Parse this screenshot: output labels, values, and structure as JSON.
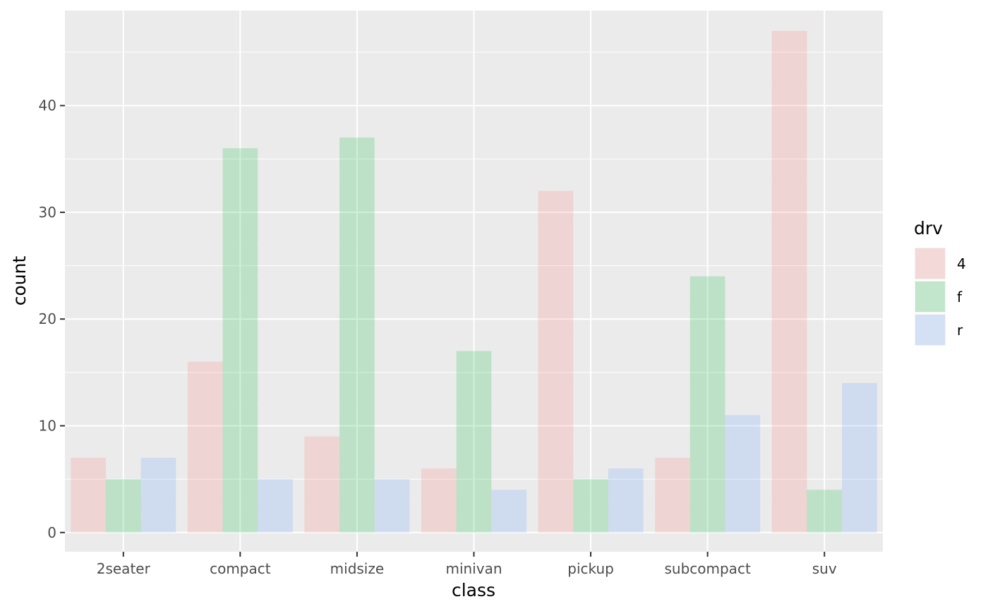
{
  "chart_data": {
    "type": "bar",
    "title": "",
    "xlabel": "class",
    "ylabel": "count",
    "categories": [
      "2seater",
      "compact",
      "midsize",
      "minivan",
      "pickup",
      "subcompact",
      "suv"
    ],
    "ylim": [
      -1.8,
      48.9
    ],
    "yticks": [
      0,
      10,
      20,
      30,
      40
    ],
    "grid": true,
    "bar_alpha": 0.2,
    "legend": {
      "title": "drv",
      "position": "right"
    },
    "series": [
      {
        "name": "4",
        "color": "#F8766D",
        "values": [
          7,
          16,
          9,
          6,
          32,
          7,
          47
        ],
        "stacked_segments": [
          [
            1,
            1,
            5
          ],
          [
            1,
            1,
            1,
            1,
            1,
            1,
            1,
            1,
            1,
            1,
            1,
            1,
            1,
            1,
            1,
            1
          ],
          [
            1,
            1,
            1,
            1,
            1,
            1,
            1,
            1,
            1
          ],
          [
            1,
            1,
            1,
            1,
            1,
            1
          ],
          [
            1,
            1,
            1,
            1,
            1,
            1,
            1,
            1,
            1,
            1,
            1,
            1,
            1,
            1,
            1,
            1,
            1,
            1,
            1,
            1,
            1,
            1,
            1,
            1,
            1,
            1,
            1,
            1,
            1,
            1,
            1,
            1
          ],
          [
            1,
            1,
            1,
            1,
            1,
            1,
            1
          ],
          [
            1,
            1,
            1,
            1,
            1,
            1,
            1,
            1,
            1,
            1,
            1,
            1,
            1,
            1,
            1,
            1,
            1,
            1,
            1,
            1,
            1,
            1,
            1,
            1,
            1,
            1,
            1,
            1,
            1,
            1,
            1,
            1,
            1,
            1,
            1,
            1,
            1,
            1,
            1,
            1,
            1,
            1,
            1,
            1,
            1,
            1,
            1
          ]
        ]
      },
      {
        "name": "f",
        "color": "#00BA38",
        "values": [
          5,
          36,
          37,
          17,
          5,
          24,
          4
        ],
        "stacked_segments": [
          [
            1,
            1,
            1,
            1,
            1
          ],
          [
            1,
            1,
            1,
            1,
            1,
            1,
            1,
            1,
            1,
            1,
            1,
            1,
            1,
            1,
            1,
            1,
            1,
            1,
            1,
            1,
            1,
            1,
            1,
            1,
            1,
            1,
            1,
            1,
            1,
            1,
            1,
            1,
            4
          ],
          [
            1,
            1,
            1,
            1,
            1,
            1,
            1,
            1,
            1,
            1,
            1,
            1,
            1,
            1,
            1,
            1,
            1,
            1,
            1,
            1,
            1,
            1,
            1,
            1,
            1,
            1,
            1,
            1,
            1,
            1,
            1,
            1,
            1,
            1,
            3
          ],
          [
            1,
            1,
            1,
            1,
            1,
            1,
            1,
            1,
            1,
            1,
            1,
            1,
            2,
            3
          ],
          [
            1,
            1,
            1,
            1,
            1
          ],
          [
            1,
            1,
            1,
            1,
            1,
            1,
            1,
            1,
            1,
            1,
            1,
            1,
            1,
            1,
            1,
            1,
            1,
            1,
            1,
            1,
            1,
            1,
            1,
            1
          ],
          [
            1,
            1,
            1,
            1
          ]
        ]
      },
      {
        "name": "r",
        "color": "#619CFF",
        "values": [
          7,
          5,
          5,
          4,
          6,
          11,
          14
        ],
        "stacked_segments": [
          [
            1,
            1,
            1,
            1,
            1,
            1,
            1
          ],
          [
            1,
            1,
            3
          ],
          [
            1,
            1,
            1,
            2
          ],
          [
            1,
            1,
            2
          ],
          [
            1,
            1,
            1,
            1,
            1,
            1
          ],
          [
            1,
            1,
            1,
            1,
            1,
            1,
            1,
            1,
            1,
            1,
            1
          ],
          [
            1,
            1,
            1,
            1,
            1,
            1,
            1,
            1,
            1,
            1,
            1,
            1,
            1,
            1
          ]
        ]
      }
    ]
  }
}
